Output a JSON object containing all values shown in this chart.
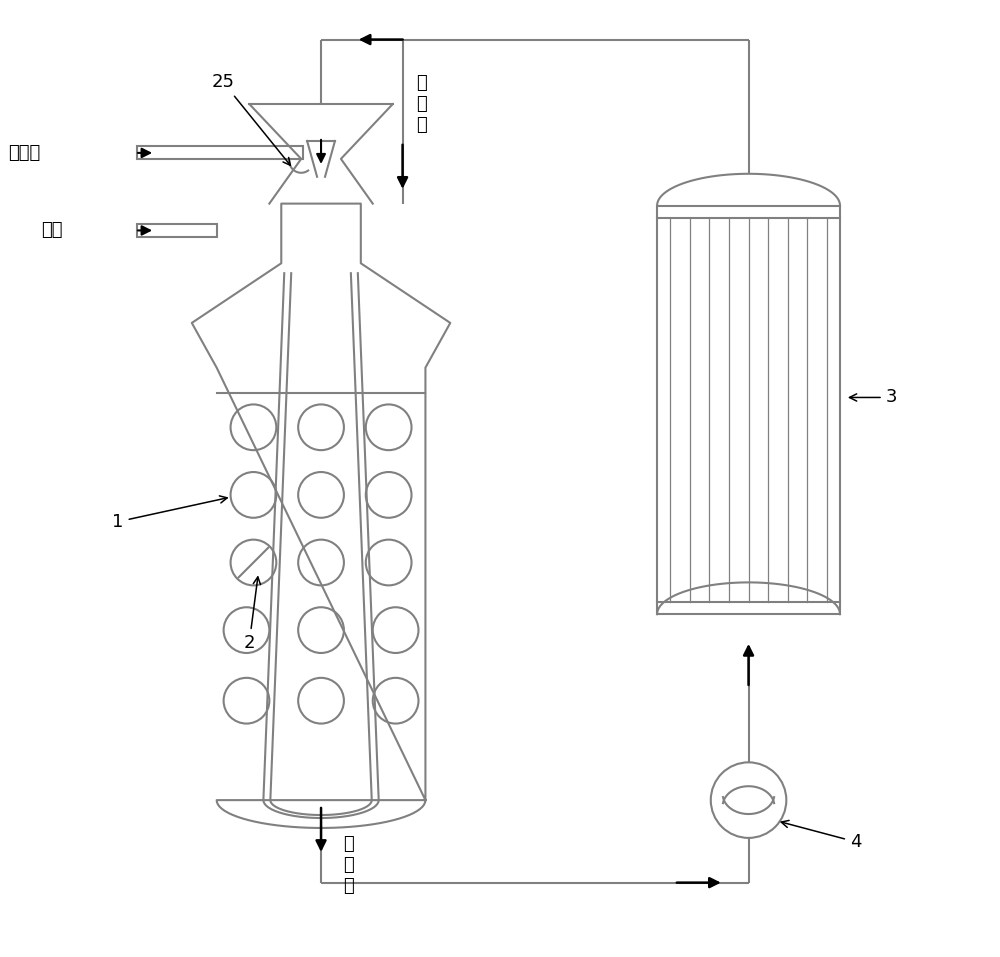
{
  "bg_color": "#ffffff",
  "line_color": "#808080",
  "text_color": "#000000",
  "label_25": "25",
  "label_1": "1",
  "label_2": "2",
  "label_3": "3",
  "label_4": "4",
  "label_syngas": "合成气",
  "label_octene": "辛烯",
  "label_inlet": "进\n料\n口",
  "label_outlet": "出\n料\n口",
  "font_size": 16,
  "small_font": 13
}
